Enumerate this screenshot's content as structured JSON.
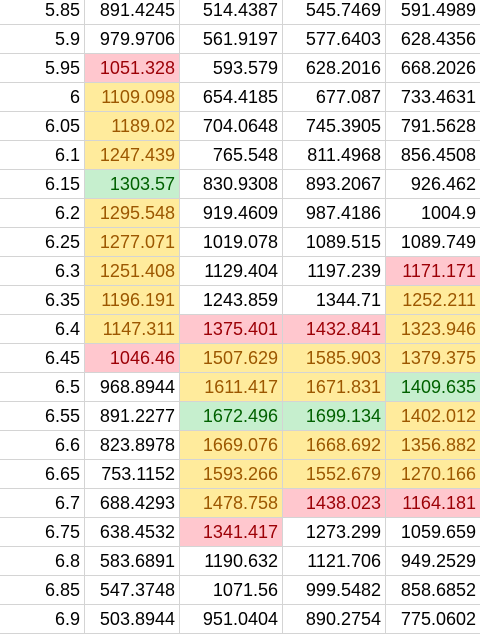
{
  "sheet": {
    "colors": {
      "red_fill": "#ffc7ce",
      "red_text": "#9c0006",
      "yellow_fill": "#ffeb9c",
      "yellow_text": "#9c5700",
      "green_fill": "#c6efce",
      "green_text": "#006100",
      "gridline": "#d4d4d4"
    },
    "rows": [
      {
        "cells": [
          {
            "v": "5.85",
            "f": "plain"
          },
          {
            "v": "891.4245",
            "f": "plain"
          },
          {
            "v": "514.4387",
            "f": "plain"
          },
          {
            "v": "545.7469",
            "f": "plain"
          },
          {
            "v": "591.4989",
            "f": "plain"
          }
        ]
      },
      {
        "cells": [
          {
            "v": "5.9",
            "f": "plain"
          },
          {
            "v": "979.9706",
            "f": "plain"
          },
          {
            "v": "561.9197",
            "f": "plain"
          },
          {
            "v": "577.6403",
            "f": "plain"
          },
          {
            "v": "628.4356",
            "f": "plain"
          }
        ]
      },
      {
        "cells": [
          {
            "v": "5.95",
            "f": "plain"
          },
          {
            "v": "1051.328",
            "f": "red"
          },
          {
            "v": "593.579",
            "f": "plain"
          },
          {
            "v": "628.2016",
            "f": "plain"
          },
          {
            "v": "668.2026",
            "f": "plain"
          }
        ]
      },
      {
        "cells": [
          {
            "v": "6",
            "f": "plain"
          },
          {
            "v": "1109.098",
            "f": "yellow"
          },
          {
            "v": "654.4185",
            "f": "plain"
          },
          {
            "v": "677.087",
            "f": "plain"
          },
          {
            "v": "733.4631",
            "f": "plain"
          }
        ]
      },
      {
        "cells": [
          {
            "v": "6.05",
            "f": "plain"
          },
          {
            "v": "1189.02",
            "f": "yellow"
          },
          {
            "v": "704.0648",
            "f": "plain"
          },
          {
            "v": "745.3905",
            "f": "plain"
          },
          {
            "v": "791.5628",
            "f": "plain"
          }
        ]
      },
      {
        "cells": [
          {
            "v": "6.1",
            "f": "plain"
          },
          {
            "v": "1247.439",
            "f": "yellow"
          },
          {
            "v": "765.548",
            "f": "plain"
          },
          {
            "v": "811.4968",
            "f": "plain"
          },
          {
            "v": "856.4508",
            "f": "plain"
          }
        ]
      },
      {
        "cells": [
          {
            "v": "6.15",
            "f": "plain"
          },
          {
            "v": "1303.57",
            "f": "green"
          },
          {
            "v": "830.9308",
            "f": "plain"
          },
          {
            "v": "893.2067",
            "f": "plain"
          },
          {
            "v": "926.462",
            "f": "plain"
          }
        ]
      },
      {
        "cells": [
          {
            "v": "6.2",
            "f": "plain"
          },
          {
            "v": "1295.548",
            "f": "yellow"
          },
          {
            "v": "919.4609",
            "f": "plain"
          },
          {
            "v": "987.4186",
            "f": "plain"
          },
          {
            "v": "1004.9",
            "f": "plain"
          }
        ]
      },
      {
        "cells": [
          {
            "v": "6.25",
            "f": "plain"
          },
          {
            "v": "1277.071",
            "f": "yellow"
          },
          {
            "v": "1019.078",
            "f": "plain"
          },
          {
            "v": "1089.515",
            "f": "plain"
          },
          {
            "v": "1089.749",
            "f": "plain"
          }
        ]
      },
      {
        "cells": [
          {
            "v": "6.3",
            "f": "plain"
          },
          {
            "v": "1251.408",
            "f": "yellow"
          },
          {
            "v": "1129.404",
            "f": "plain"
          },
          {
            "v": "1197.239",
            "f": "plain"
          },
          {
            "v": "1171.171",
            "f": "red"
          }
        ]
      },
      {
        "cells": [
          {
            "v": "6.35",
            "f": "plain"
          },
          {
            "v": "1196.191",
            "f": "yellow"
          },
          {
            "v": "1243.859",
            "f": "plain"
          },
          {
            "v": "1344.71",
            "f": "plain"
          },
          {
            "v": "1252.211",
            "f": "yellow"
          }
        ]
      },
      {
        "cells": [
          {
            "v": "6.4",
            "f": "plain"
          },
          {
            "v": "1147.311",
            "f": "yellow"
          },
          {
            "v": "1375.401",
            "f": "red"
          },
          {
            "v": "1432.841",
            "f": "red"
          },
          {
            "v": "1323.946",
            "f": "yellow"
          }
        ]
      },
      {
        "cells": [
          {
            "v": "6.45",
            "f": "plain"
          },
          {
            "v": "1046.46",
            "f": "red"
          },
          {
            "v": "1507.629",
            "f": "yellow"
          },
          {
            "v": "1585.903",
            "f": "yellow"
          },
          {
            "v": "1379.375",
            "f": "yellow"
          }
        ]
      },
      {
        "cells": [
          {
            "v": "6.5",
            "f": "plain"
          },
          {
            "v": "968.8944",
            "f": "plain"
          },
          {
            "v": "1611.417",
            "f": "yellow"
          },
          {
            "v": "1671.831",
            "f": "yellow"
          },
          {
            "v": "1409.635",
            "f": "green"
          }
        ]
      },
      {
        "cells": [
          {
            "v": "6.55",
            "f": "plain"
          },
          {
            "v": "891.2277",
            "f": "plain"
          },
          {
            "v": "1672.496",
            "f": "green"
          },
          {
            "v": "1699.134",
            "f": "green"
          },
          {
            "v": "1402.012",
            "f": "yellow"
          }
        ]
      },
      {
        "cells": [
          {
            "v": "6.6",
            "f": "plain"
          },
          {
            "v": "823.8978",
            "f": "plain"
          },
          {
            "v": "1669.076",
            "f": "yellow"
          },
          {
            "v": "1668.692",
            "f": "yellow"
          },
          {
            "v": "1356.882",
            "f": "yellow"
          }
        ]
      },
      {
        "cells": [
          {
            "v": "6.65",
            "f": "plain"
          },
          {
            "v": "753.1152",
            "f": "plain"
          },
          {
            "v": "1593.266",
            "f": "yellow"
          },
          {
            "v": "1552.679",
            "f": "yellow"
          },
          {
            "v": "1270.166",
            "f": "yellow"
          }
        ]
      },
      {
        "cells": [
          {
            "v": "6.7",
            "f": "plain"
          },
          {
            "v": "688.4293",
            "f": "plain"
          },
          {
            "v": "1478.758",
            "f": "yellow"
          },
          {
            "v": "1438.023",
            "f": "red"
          },
          {
            "v": "1164.181",
            "f": "red"
          }
        ]
      },
      {
        "cells": [
          {
            "v": "6.75",
            "f": "plain"
          },
          {
            "v": "638.4532",
            "f": "plain"
          },
          {
            "v": "1341.417",
            "f": "red"
          },
          {
            "v": "1273.299",
            "f": "plain"
          },
          {
            "v": "1059.659",
            "f": "plain"
          }
        ]
      },
      {
        "cells": [
          {
            "v": "6.8",
            "f": "plain"
          },
          {
            "v": "583.6891",
            "f": "plain"
          },
          {
            "v": "1190.632",
            "f": "plain"
          },
          {
            "v": "1121.706",
            "f": "plain"
          },
          {
            "v": "949.2529",
            "f": "plain"
          }
        ]
      },
      {
        "cells": [
          {
            "v": "6.85",
            "f": "plain"
          },
          {
            "v": "547.3748",
            "f": "plain"
          },
          {
            "v": "1071.56",
            "f": "plain"
          },
          {
            "v": "999.5482",
            "f": "plain"
          },
          {
            "v": "858.6852",
            "f": "plain"
          }
        ]
      },
      {
        "cells": [
          {
            "v": "6.9",
            "f": "plain"
          },
          {
            "v": "503.8944",
            "f": "plain"
          },
          {
            "v": "951.0404",
            "f": "plain"
          },
          {
            "v": "890.2754",
            "f": "plain"
          },
          {
            "v": "775.0602",
            "f": "plain"
          }
        ]
      }
    ]
  }
}
